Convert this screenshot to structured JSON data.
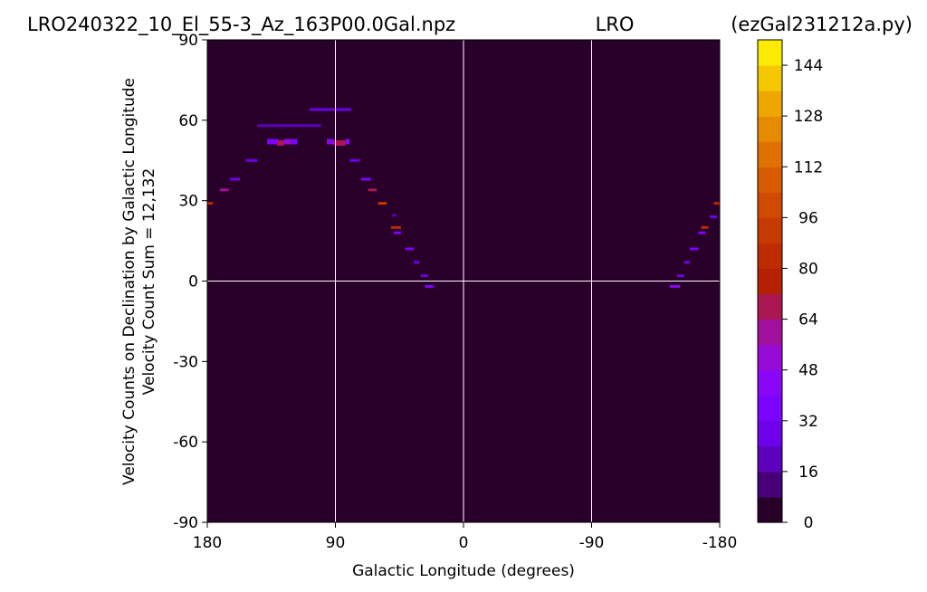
{
  "header": {
    "left": "LRO240322_10_El_55-3_Az_163P00.0Gal.npz",
    "center": "LRO",
    "right": "(ezGal231212a.py)"
  },
  "chart_data": {
    "type": "heatmap",
    "xlabel": "Galactic Longitude (degrees)",
    "ylabel": [
      "Velocity Counts on Declination by Galactic Longitude",
      "Velocity Count Sum = 12,132"
    ],
    "xlim": [
      180,
      -180
    ],
    "ylim": [
      -90,
      90
    ],
    "x_ticks": [
      180,
      90,
      0,
      -90,
      -180
    ],
    "x_tick_labels": [
      "180",
      "90",
      "0",
      "-90",
      "-180"
    ],
    "y_ticks": [
      90,
      60,
      30,
      0,
      -30,
      -60,
      -90
    ],
    "y_tick_labels": [
      "90",
      "60",
      "30",
      "0",
      "-30",
      "-60",
      "-90"
    ],
    "grid_lines_x": [
      90,
      0,
      -90
    ],
    "grid_lines_y": [
      0
    ],
    "background_value": 0,
    "colorbar": {
      "min": 0,
      "max": 152,
      "levels": 19,
      "colormap": "gnuplot",
      "ticks": [
        0,
        16,
        32,
        48,
        64,
        80,
        96,
        112,
        128,
        144
      ],
      "tick_labels": [
        "0",
        "16",
        "32",
        "48",
        "64",
        "80",
        "96",
        "112",
        "128",
        "144"
      ]
    },
    "cells": [
      {
        "x0": 108,
        "x1": 79,
        "y0": 63.5,
        "y1": 64.5,
        "v": 30
      },
      {
        "x0": 145,
        "x1": 100,
        "y0": 57.5,
        "y1": 58.5,
        "v": 22
      },
      {
        "x0": 138,
        "x1": 130,
        "y0": 51,
        "y1": 53,
        "v": 38
      },
      {
        "x0": 131,
        "x1": 126,
        "y0": 50.5,
        "y1": 52.5,
        "v": 70
      },
      {
        "x0": 126,
        "x1": 121,
        "y0": 51,
        "y1": 53,
        "v": 55
      },
      {
        "x0": 121,
        "x1": 117,
        "y0": 51,
        "y1": 53,
        "v": 35
      },
      {
        "x0": 96,
        "x1": 91,
        "y0": 51,
        "y1": 53,
        "v": 40
      },
      {
        "x0": 91,
        "x1": 83,
        "y0": 50.5,
        "y1": 52.5,
        "v": 65
      },
      {
        "x0": 83,
        "x1": 80,
        "y0": 51,
        "y1": 53,
        "v": 45
      },
      {
        "x0": 153,
        "x1": 145,
        "y0": 44.5,
        "y1": 45.5,
        "v": 25
      },
      {
        "x0": 80,
        "x1": 73,
        "y0": 44.5,
        "y1": 45.5,
        "v": 30
      },
      {
        "x0": 164,
        "x1": 157,
        "y0": 37.5,
        "y1": 38.5,
        "v": 28
      },
      {
        "x0": 72,
        "x1": 65,
        "y0": 37.5,
        "y1": 38.5,
        "v": 35
      },
      {
        "x0": 171,
        "x1": 165,
        "y0": 33.5,
        "y1": 34.5,
        "v": 60
      },
      {
        "x0": 67,
        "x1": 61,
        "y0": 33.5,
        "y1": 34.5,
        "v": 65
      },
      {
        "x0": 180,
        "x1": 176,
        "y0": 28.5,
        "y1": 29.5,
        "v": 85
      },
      {
        "x0": 60,
        "x1": 54,
        "y0": 28.5,
        "y1": 29.5,
        "v": 95
      },
      {
        "x0": 50,
        "x1": 47,
        "y0": 24,
        "y1": 25,
        "v": 20
      },
      {
        "x0": 51,
        "x1": 44,
        "y0": 19.5,
        "y1": 20.5,
        "v": 80
      },
      {
        "x0": 49,
        "x1": 44,
        "y0": 17.5,
        "y1": 18.5,
        "v": 35
      },
      {
        "x0": 41,
        "x1": 35,
        "y0": 11.5,
        "y1": 12.5,
        "v": 35
      },
      {
        "x0": 35,
        "x1": 31,
        "y0": 6.5,
        "y1": 7.5,
        "v": 30
      },
      {
        "x0": 30,
        "x1": 25,
        "y0": 1.5,
        "y1": 2.5,
        "v": 30
      },
      {
        "x0": 27,
        "x1": 21,
        "y0": -2.5,
        "y1": -1.5,
        "v": 38
      },
      {
        "x0": -145,
        "x1": -152,
        "y0": -2.5,
        "y1": -1.5,
        "v": 45
      },
      {
        "x0": -150,
        "x1": -155,
        "y0": 1.5,
        "y1": 2.5,
        "v": 30
      },
      {
        "x0": -155,
        "x1": -159,
        "y0": 6.5,
        "y1": 7.5,
        "v": 30
      },
      {
        "x0": -159,
        "x1": -165,
        "y0": 11.5,
        "y1": 12.5,
        "v": 35
      },
      {
        "x0": -165,
        "x1": -170,
        "y0": 17.5,
        "y1": 18.5,
        "v": 35
      },
      {
        "x0": -167,
        "x1": -172,
        "y0": 19.5,
        "y1": 20.5,
        "v": 80
      },
      {
        "x0": -173,
        "x1": -178,
        "y0": 23.5,
        "y1": 24.5,
        "v": 30
      },
      {
        "x0": -176,
        "x1": -180,
        "y0": 28.5,
        "y1": 29.5,
        "v": 85
      }
    ]
  }
}
